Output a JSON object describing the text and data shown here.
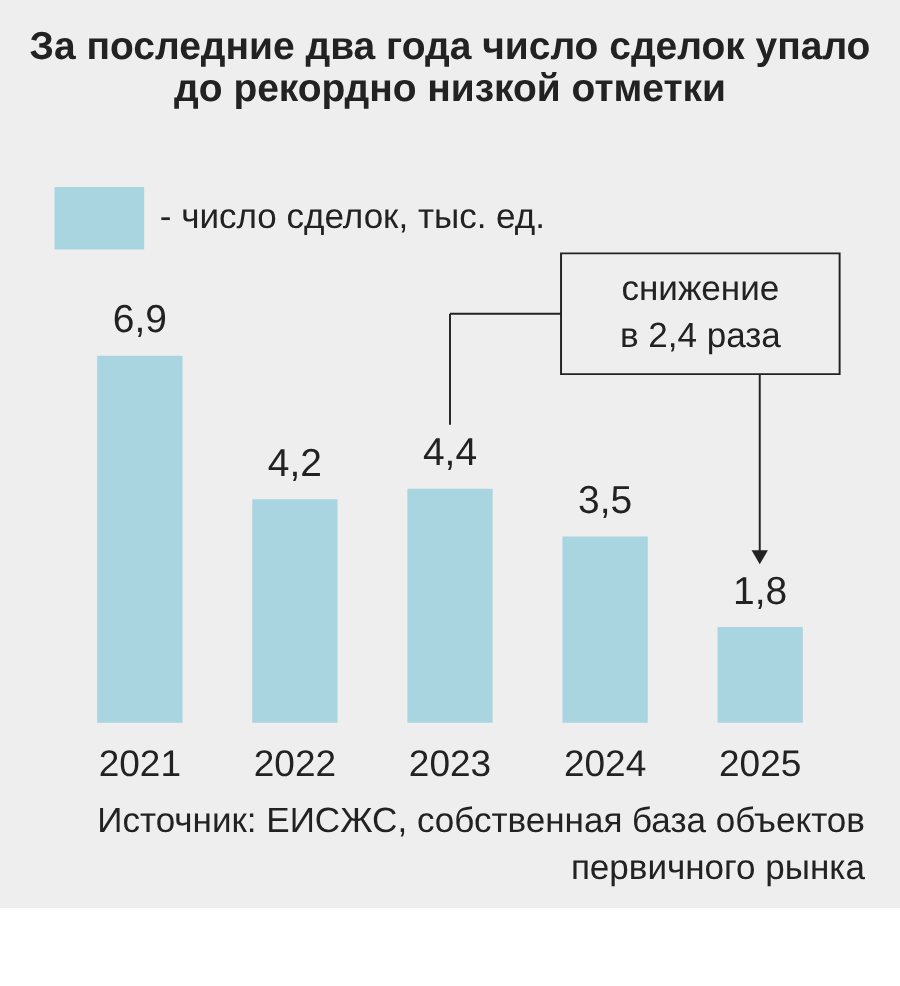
{
  "chart_data": {
    "type": "bar",
    "title": [
      "За последние два года число сделок упало",
      "до рекордно низкой отметки"
    ],
    "categories": [
      "2021",
      "2022",
      "2023",
      "2024",
      "2025"
    ],
    "series": [
      {
        "name": "- число сделок, тыс. ед.",
        "color": "#a9d5e0",
        "values": [
          6.9,
          4.2,
          4.4,
          3.5,
          1.8
        ],
        "value_labels": [
          "6,9",
          "4,2",
          "4,4",
          "3,5",
          "1,8"
        ]
      }
    ],
    "annotations": [
      "снижение\nв 2,4 раза",
      "Источник: ЕИСЖС, собственная база объектов\nпервичного рынка"
    ],
    "legend": "top left",
    "grid": false
  }
}
